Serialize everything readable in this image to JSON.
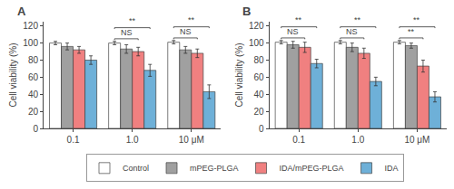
{
  "chart_data": [
    {
      "type": "bar",
      "title": "A",
      "categories": [
        "0.1",
        "1.0",
        "10 μM"
      ],
      "series": [
        {
          "name": "Control",
          "color": "#FFFFFF",
          "values": [
            100,
            100,
            101
          ],
          "errors": [
            2,
            2,
            2
          ]
        },
        {
          "name": "mPEG-PLGA",
          "color": "#A0A0A0",
          "values": [
            96,
            93,
            92
          ],
          "errors": [
            4,
            5,
            4
          ]
        },
        {
          "name": "IDA/mPEG-PLGA",
          "color": "#F08080",
          "values": [
            92,
            90,
            88
          ],
          "errors": [
            4,
            5,
            5
          ]
        },
        {
          "name": "IDA",
          "color": "#6EB0D8",
          "values": [
            80,
            68,
            43
          ],
          "errors": [
            5,
            7,
            8
          ]
        }
      ],
      "ylabel": "Cell viability (%)",
      "ylim": [
        0,
        125
      ],
      "yticks": [
        0,
        20,
        40,
        60,
        80,
        100,
        120
      ],
      "grid": false,
      "legend": "bottom",
      "annotations": [
        {
          "category": "1.0",
          "text": "NS",
          "from": "Control",
          "to": "IDA/mPEG-PLGA"
        },
        {
          "category": "1.0",
          "text": "**",
          "from": "Control",
          "to": "IDA"
        },
        {
          "category": "10 μM",
          "text": "NS",
          "from": "Control",
          "to": "IDA/mPEG-PLGA"
        },
        {
          "category": "10 μM",
          "text": "**",
          "from": "Control",
          "to": "IDA"
        }
      ]
    },
    {
      "type": "bar",
      "title": "B",
      "categories": [
        "0.1",
        "1.0",
        "10 μM"
      ],
      "series": [
        {
          "name": "Control",
          "color": "#FFFFFF",
          "values": [
            101,
            101,
            101
          ],
          "errors": [
            2,
            2,
            2
          ]
        },
        {
          "name": "mPEG-PLGA",
          "color": "#A0A0A0",
          "values": [
            98,
            95,
            97
          ],
          "errors": [
            4,
            5,
            3
          ]
        },
        {
          "name": "IDA/mPEG-PLGA",
          "color": "#F08080",
          "values": [
            95,
            88,
            73
          ],
          "errors": [
            6,
            6,
            7
          ]
        },
        {
          "name": "IDA",
          "color": "#6EB0D8",
          "values": [
            76,
            55,
            37
          ],
          "errors": [
            5,
            5,
            6
          ]
        }
      ],
      "ylabel": "Cell viability (%)",
      "ylim": [
        0,
        125
      ],
      "yticks": [
        0,
        20,
        40,
        60,
        80,
        100,
        120
      ],
      "grid": false,
      "legend": "bottom",
      "annotations": [
        {
          "category": "0.1",
          "text": "NS",
          "from": "Control",
          "to": "IDA/mPEG-PLGA"
        },
        {
          "category": "0.1",
          "text": "**",
          "from": "Control",
          "to": "IDA"
        },
        {
          "category": "1.0",
          "text": "NS",
          "from": "Control",
          "to": "IDA/mPEG-PLGA"
        },
        {
          "category": "1.0",
          "text": "**",
          "from": "Control",
          "to": "IDA"
        },
        {
          "category": "10 μM",
          "text": "**",
          "from": "Control",
          "to": "IDA/mPEG-PLGA"
        },
        {
          "category": "10 μM",
          "text": "**",
          "from": "Control",
          "to": "IDA"
        }
      ]
    }
  ]
}
